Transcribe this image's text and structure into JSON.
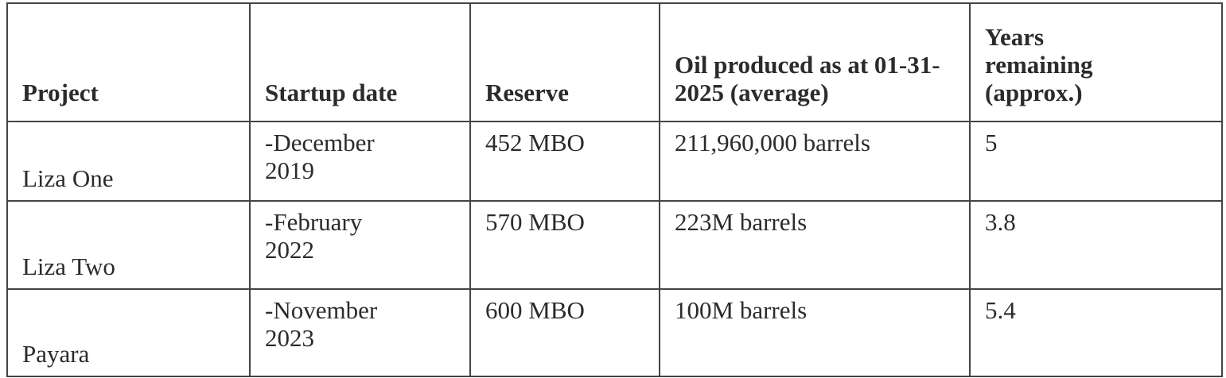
{
  "table": {
    "header": [
      "Project",
      "Startup date",
      "Reserve",
      "Oil produced as at 01-31-2025 (average)",
      "Years remaining (approx.)"
    ],
    "rows": [
      [
        "Liza One",
        "-December 2019",
        "452 MBO",
        "211,960,000 barrels",
        "5"
      ],
      [
        "Liza Two",
        "-February 2022",
        "570 MBO",
        "223M barrels",
        "3.8"
      ],
      [
        "Payara",
        "-November 2023",
        "600 MBO",
        "100M barrels",
        "5.4"
      ]
    ]
  }
}
